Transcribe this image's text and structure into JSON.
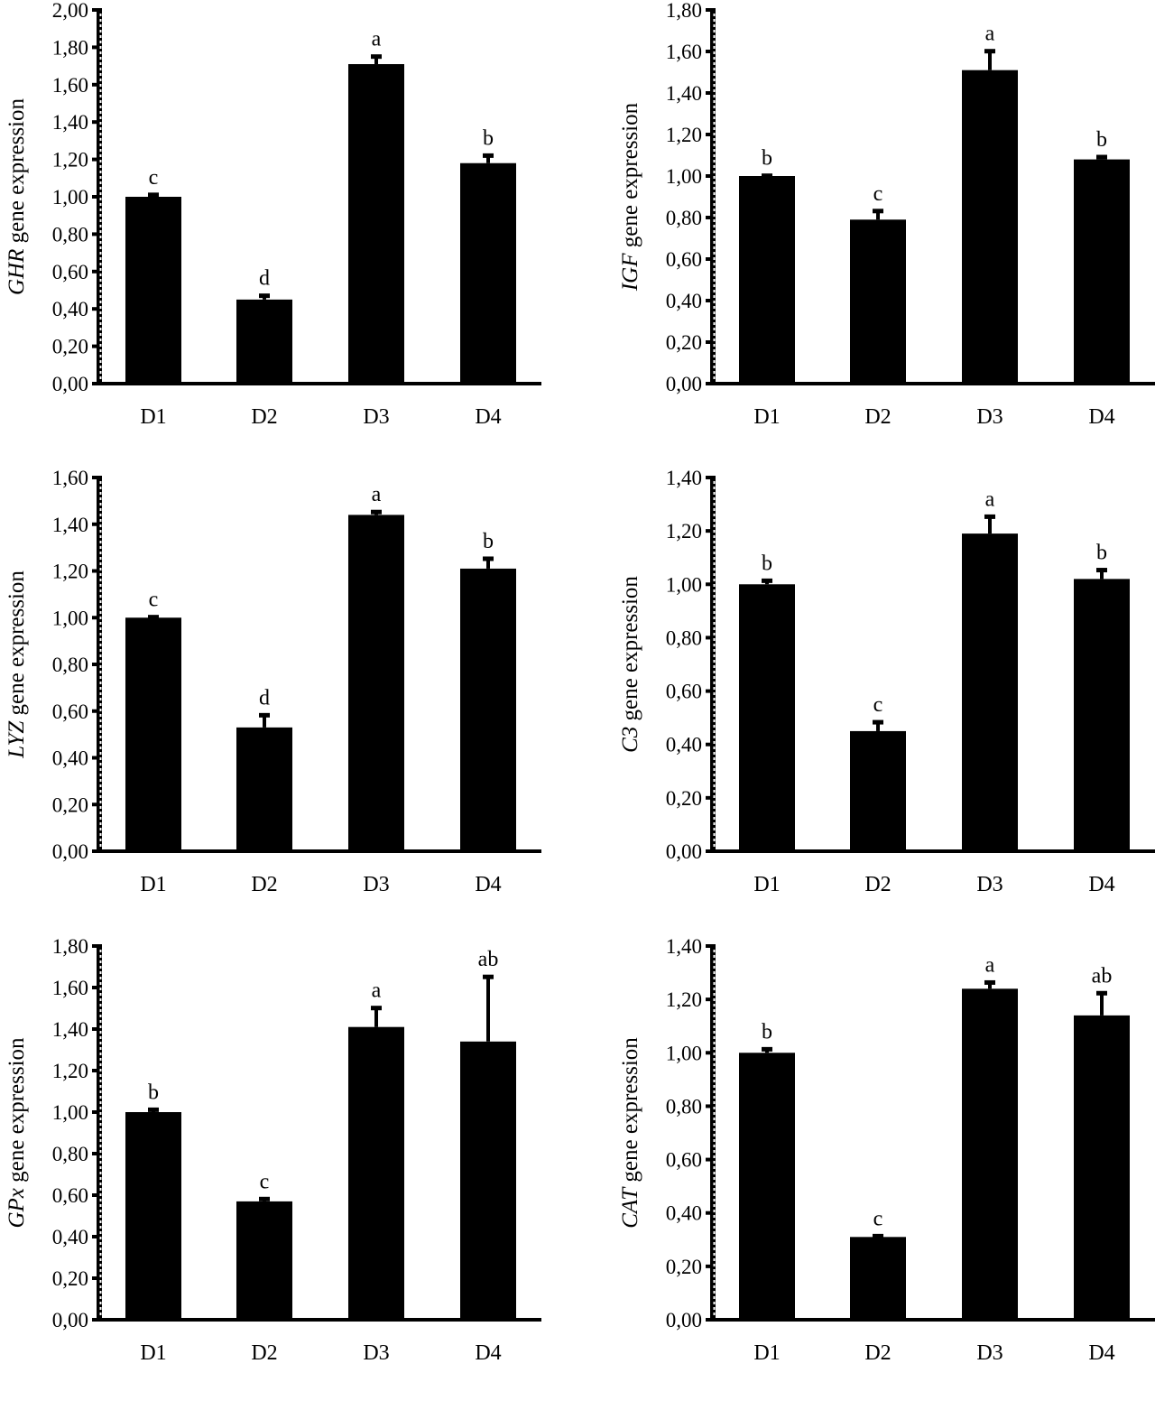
{
  "chart_data": [
    {
      "type": "bar",
      "gene": "GHR",
      "ylabel_suffix": " gene expression",
      "categories": [
        "D1",
        "D2",
        "D3",
        "D4"
      ],
      "values": [
        1.0,
        0.45,
        1.71,
        1.18
      ],
      "errors": [
        0.02,
        0.03,
        0.05,
        0.05
      ],
      "letters": [
        "c",
        "d",
        "a",
        "b"
      ],
      "ylim": [
        0,
        2.0
      ],
      "ytick_step": 0.2,
      "yticks": [
        "0,00",
        "0,20",
        "0,40",
        "0,60",
        "0,80",
        "1,00",
        "1,20",
        "1,40",
        "1,60",
        "1,80",
        "2,00"
      ]
    },
    {
      "type": "bar",
      "gene": "IGF",
      "ylabel_suffix": " gene expression",
      "categories": [
        "D1",
        "D2",
        "D3",
        "D4"
      ],
      "values": [
        1.0,
        0.79,
        1.51,
        1.08
      ],
      "errors": [
        0.01,
        0.05,
        0.1,
        0.02
      ],
      "letters": [
        "b",
        "c",
        "a",
        "b"
      ],
      "ylim": [
        0,
        1.8
      ],
      "ytick_step": 0.2,
      "yticks": [
        "0,00",
        "0,20",
        "0,40",
        "0,60",
        "0,80",
        "1,00",
        "1,20",
        "1,40",
        "1,60",
        "1,80"
      ]
    },
    {
      "type": "bar",
      "gene": "LYZ",
      "ylabel_suffix": " gene expression",
      "categories": [
        "D1",
        "D2",
        "D3",
        "D4"
      ],
      "values": [
        1.0,
        0.53,
        1.44,
        1.21
      ],
      "errors": [
        0.01,
        0.06,
        0.02,
        0.05
      ],
      "letters": [
        "c",
        "d",
        "a",
        "b"
      ],
      "ylim": [
        0,
        1.6
      ],
      "ytick_step": 0.2,
      "yticks": [
        "0,00",
        "0,20",
        "0,40",
        "0,60",
        "0,80",
        "1,00",
        "1,20",
        "1,40",
        "1,60"
      ]
    },
    {
      "type": "bar",
      "gene": "C3",
      "ylabel_suffix": " gene expression",
      "categories": [
        "D1",
        "D2",
        "D3",
        "D4"
      ],
      "values": [
        1.0,
        0.45,
        1.19,
        1.02
      ],
      "errors": [
        0.02,
        0.04,
        0.07,
        0.04
      ],
      "letters": [
        "b",
        "c",
        "a",
        "b"
      ],
      "ylim": [
        0,
        1.4
      ],
      "ytick_step": 0.2,
      "yticks": [
        "0,00",
        "0,20",
        "0,40",
        "0,60",
        "0,80",
        "1,00",
        "1,20",
        "1,40"
      ]
    },
    {
      "type": "bar",
      "gene": "GPx",
      "ylabel_suffix": " gene expression",
      "categories": [
        "D1",
        "D2",
        "D3",
        "D4"
      ],
      "values": [
        1.0,
        0.57,
        1.41,
        1.34
      ],
      "errors": [
        0.02,
        0.02,
        0.1,
        0.32
      ],
      "letters": [
        "b",
        "c",
        "a",
        "ab"
      ],
      "ylim": [
        0,
        1.8
      ],
      "ytick_step": 0.2,
      "yticks": [
        "0,00",
        "0,20",
        "0,40",
        "0,60",
        "0,80",
        "1,00",
        "1,20",
        "1,40",
        "1,60",
        "1,80"
      ]
    },
    {
      "type": "bar",
      "gene": "CAT",
      "ylabel_suffix": " gene expression",
      "categories": [
        "D1",
        "D2",
        "D3",
        "D4"
      ],
      "values": [
        1.0,
        0.31,
        1.24,
        1.14
      ],
      "errors": [
        0.02,
        0.01,
        0.03,
        0.09
      ],
      "letters": [
        "b",
        "c",
        "a",
        "ab"
      ],
      "ylim": [
        0,
        1.4
      ],
      "ytick_step": 0.2,
      "yticks": [
        "0,00",
        "0,20",
        "0,40",
        "0,60",
        "0,80",
        "1,00",
        "1,20",
        "1,40"
      ]
    }
  ],
  "colors": {
    "bar": "#000000",
    "axis": "#000000",
    "background": "#ffffff"
  }
}
